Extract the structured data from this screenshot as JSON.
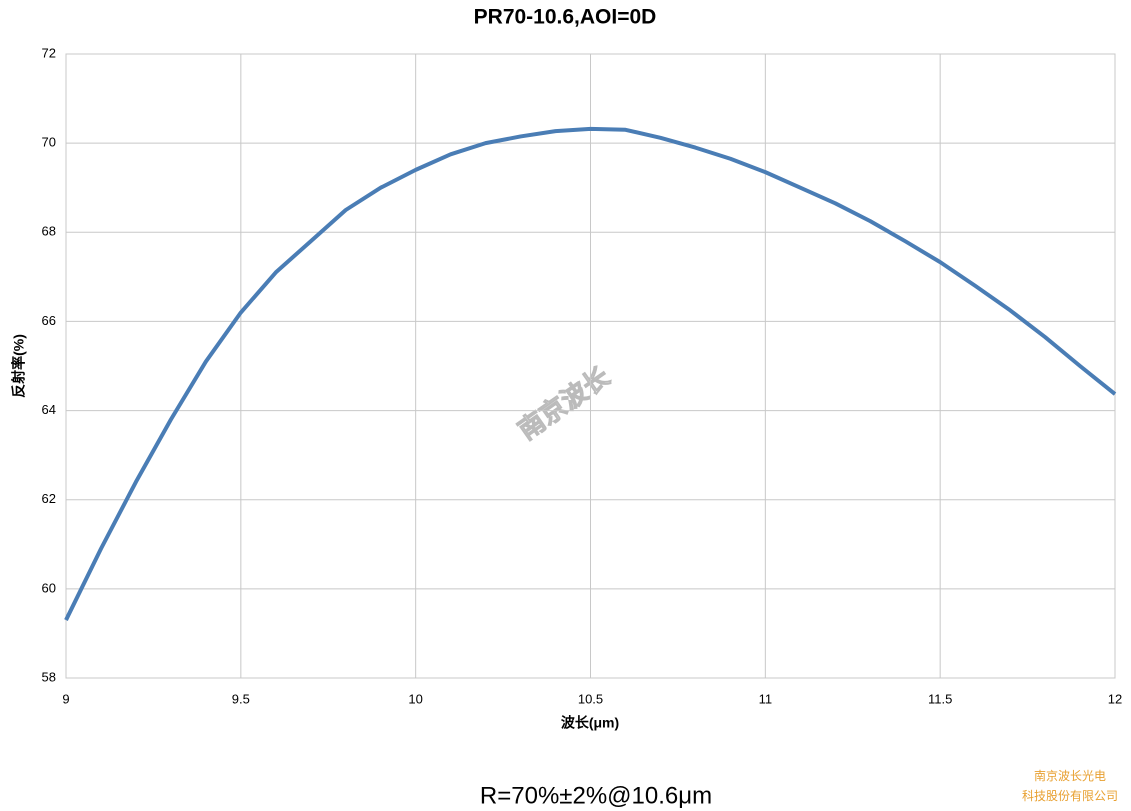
{
  "chart_data": {
    "type": "line",
    "title": "PR70-10.6,AOI=0D",
    "x_label": "波长(μm)",
    "y_label": "反射率(%)",
    "watermark": "南京波长",
    "caption": "R=70%±2%@10.6μm",
    "footer": [
      "南京波长光电",
      "科技股份有限公司"
    ],
    "x": [
      9.0,
      9.1,
      9.2,
      9.3,
      9.4,
      9.5,
      9.6,
      9.7,
      9.8,
      9.9,
      10.0,
      10.1,
      10.2,
      10.3,
      10.4,
      10.5,
      10.6,
      10.7,
      10.8,
      10.9,
      11.0,
      11.1,
      11.2,
      11.3,
      11.4,
      11.5,
      11.6,
      11.7,
      11.8,
      11.9,
      12.0
    ],
    "series": [
      {
        "color": "#4a7db5",
        "values": [
          59.3,
          60.9,
          62.4,
          63.8,
          65.1,
          66.2,
          67.1,
          67.8,
          68.5,
          69.0,
          69.4,
          69.75,
          70.0,
          70.15,
          70.27,
          70.32,
          70.3,
          70.12,
          69.9,
          69.65,
          69.35,
          69.0,
          68.65,
          68.25,
          67.8,
          67.33,
          66.8,
          66.25,
          65.65,
          65.0,
          64.37
        ]
      }
    ],
    "xlim": [
      9,
      12
    ],
    "xticks": [
      9,
      9.5,
      10,
      10.5,
      11,
      11.5,
      12
    ],
    "ylim": [
      58,
      72
    ],
    "yticks": [
      58,
      60,
      62,
      64,
      66,
      68,
      70,
      72
    ],
    "grid": true
  }
}
